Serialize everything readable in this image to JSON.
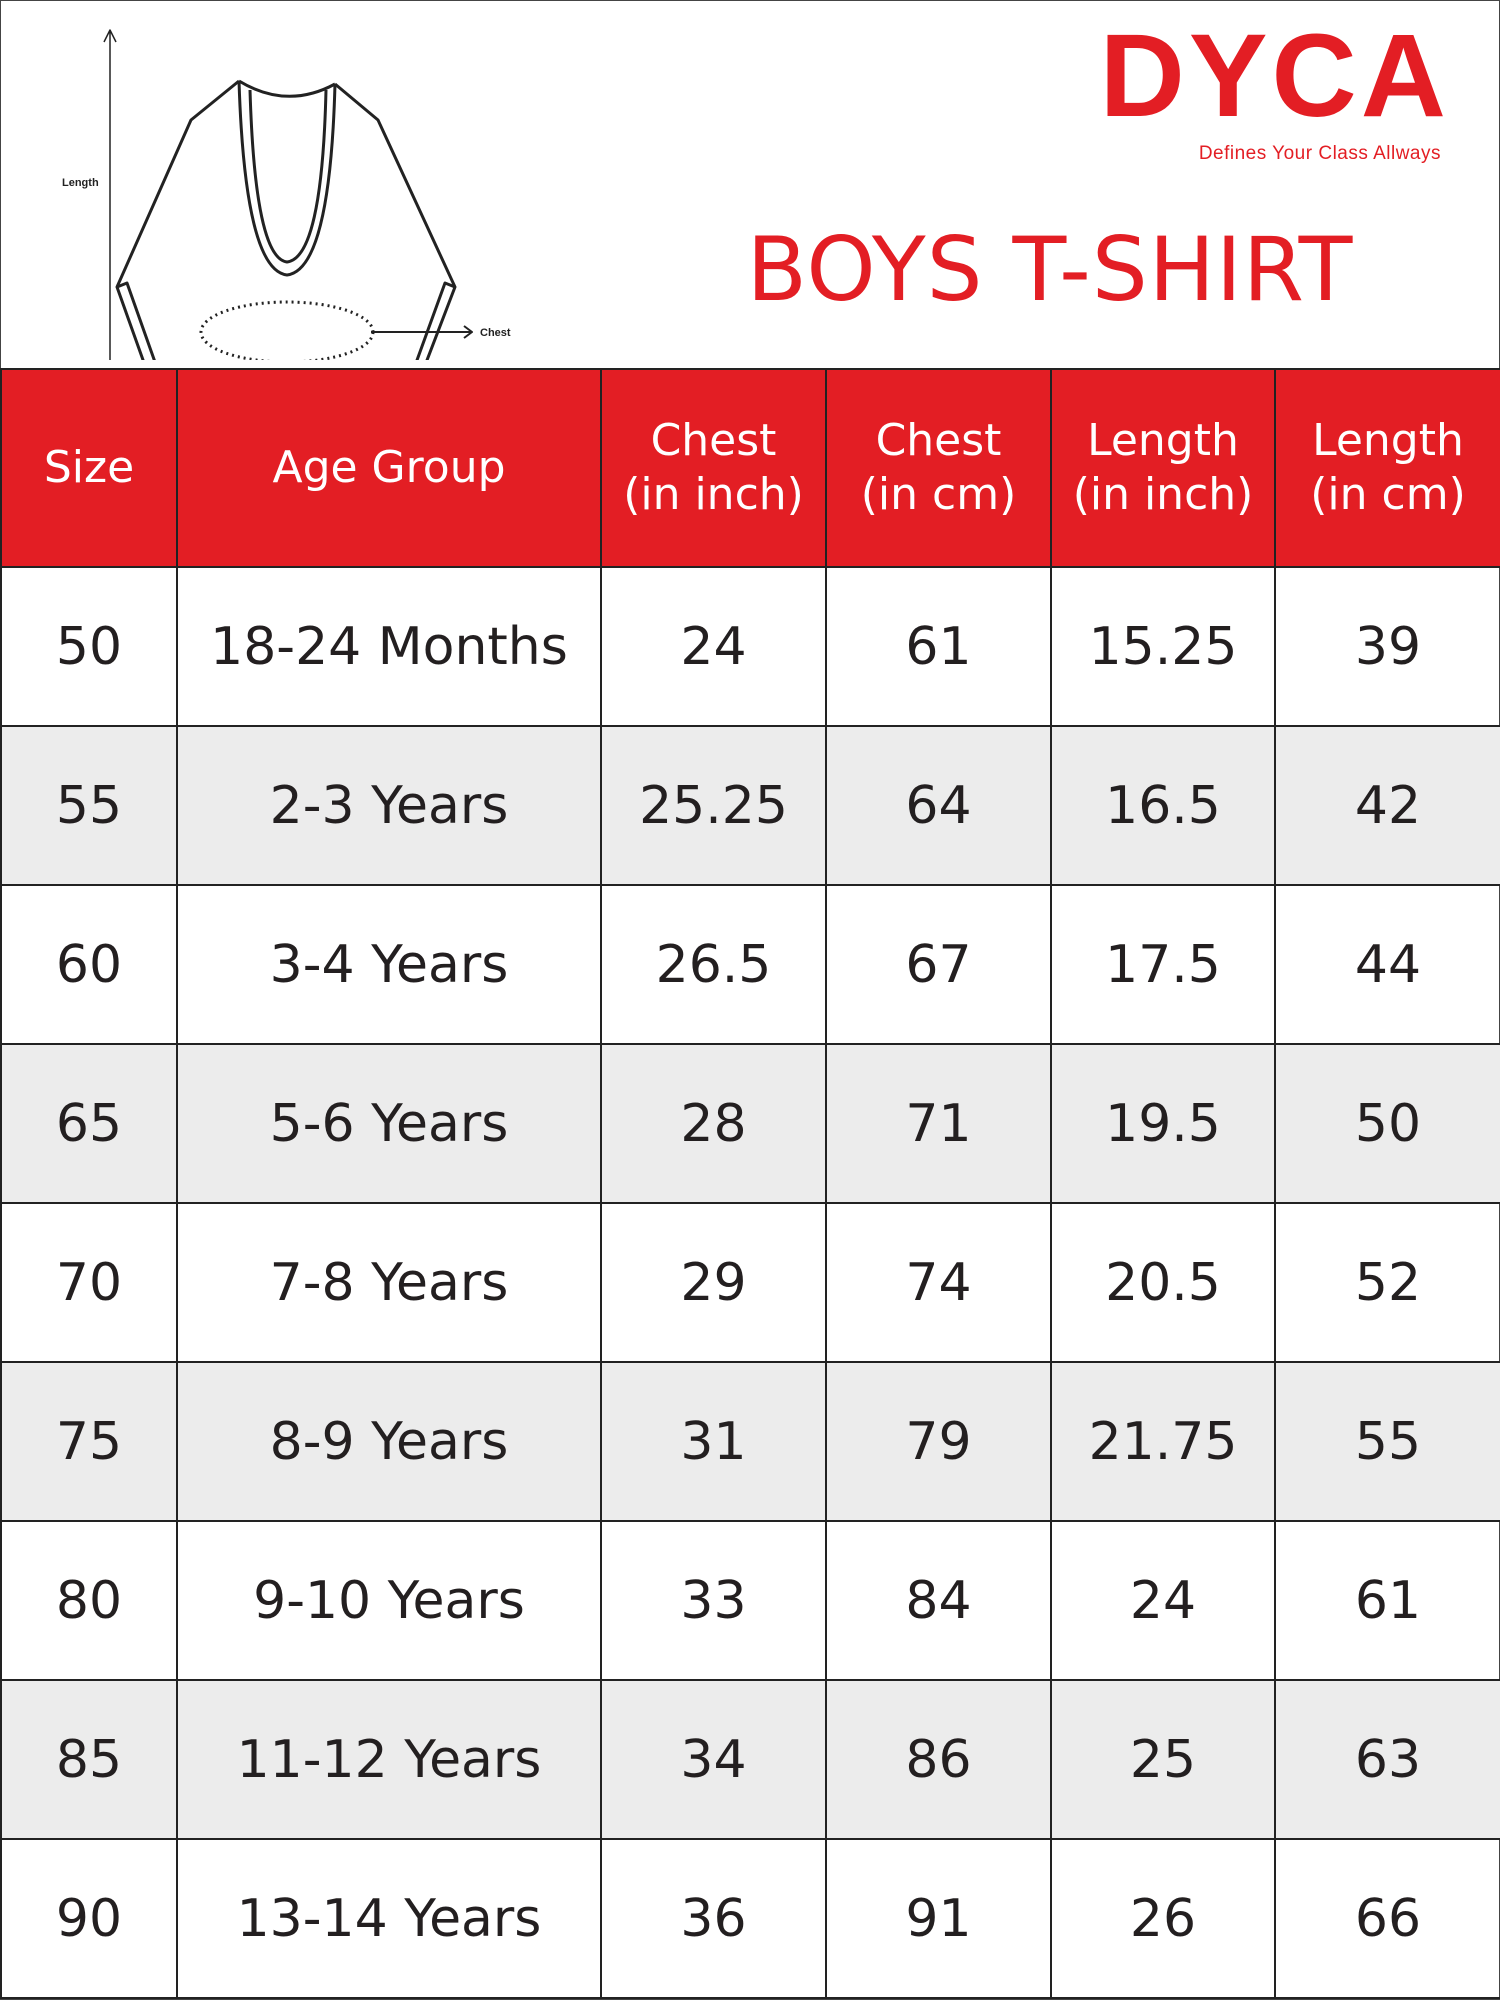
{
  "diagram": {
    "chest_label": "Chest",
    "length_label": "Length"
  },
  "logo": {
    "brand": "DYCA",
    "tagline": "Defines Your Class Allways"
  },
  "title": "BOYS T-SHIRT",
  "colors": {
    "accent": "#e31e24",
    "alt_row": "#ececec",
    "text": "#231f20"
  },
  "table": {
    "headers": [
      {
        "line1": "Size",
        "line2": ""
      },
      {
        "line1": "Age Group",
        "line2": ""
      },
      {
        "line1": "Chest",
        "line2": "(in inch)"
      },
      {
        "line1": "Chest",
        "line2": "(in cm)"
      },
      {
        "line1": "Length",
        "line2": "(in inch)"
      },
      {
        "line1": "Length",
        "line2": "(in cm)"
      }
    ],
    "rows": [
      [
        "50",
        "18-24 Months",
        "24",
        "61",
        "15.25",
        "39"
      ],
      [
        "55",
        "2-3 Years",
        "25.25",
        "64",
        "16.5",
        "42"
      ],
      [
        "60",
        "3-4 Years",
        "26.5",
        "67",
        "17.5",
        "44"
      ],
      [
        "65",
        "5-6 Years",
        "28",
        "71",
        "19.5",
        "50"
      ],
      [
        "70",
        "7-8 Years",
        "29",
        "74",
        "20.5",
        "52"
      ],
      [
        "75",
        "8-9 Years",
        "31",
        "79",
        "21.75",
        "55"
      ],
      [
        "80",
        "9-10 Years",
        "33",
        "84",
        "24",
        "61"
      ],
      [
        "85",
        "11-12 Years",
        "34",
        "86",
        "25",
        "63"
      ],
      [
        "90",
        "13-14 Years",
        "36",
        "91",
        "26",
        "66"
      ]
    ]
  }
}
